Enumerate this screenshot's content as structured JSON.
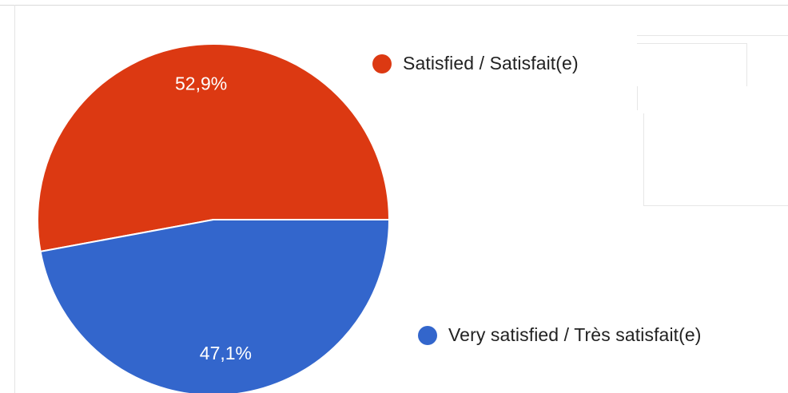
{
  "chart_data": {
    "type": "pie",
    "slices": [
      {
        "label": "Satisfied / Satisfait(e)",
        "value": 52.9,
        "display": "52,9%",
        "color": "#dc3912"
      },
      {
        "label": "Very satisfied / Très satisfait(e)",
        "value": 47.1,
        "display": "47,1%",
        "color": "#3366cc"
      }
    ],
    "start_angle_deg": 0,
    "direction": "counterclockwise",
    "legend_position": "right"
  }
}
